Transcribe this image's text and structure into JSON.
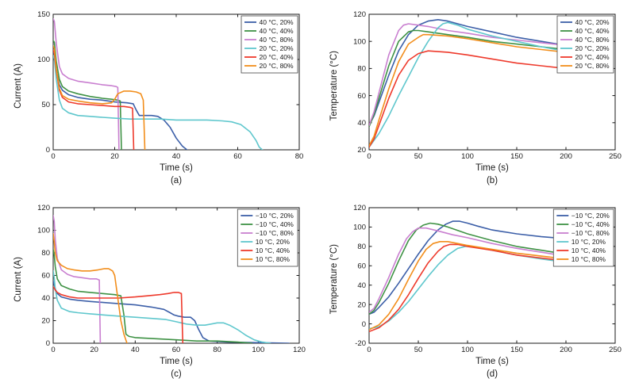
{
  "style": {
    "background": "#ffffff",
    "axis_color": "#1a1a1a",
    "text_color": "#1a1a1a",
    "legend_border": "#444444"
  },
  "palette": {
    "blue": "#3c5fa8",
    "green": "#3f9245",
    "magenta": "#c97fd0",
    "cyan": "#5fc7cd",
    "red": "#ee3a2c",
    "orange": "#f28e1c"
  },
  "chart_data": [
    {
      "type": "line",
      "caption": "(a)",
      "xlabel": "Time (s)",
      "ylabel": "Current (A)",
      "xlim": [
        0,
        80
      ],
      "ylim": [
        0,
        150
      ],
      "xticks": [
        0,
        20,
        40,
        60,
        80
      ],
      "yticks": [
        0,
        50,
        100,
        150
      ],
      "grid": false,
      "legend_position": "top-right",
      "series": [
        {
          "name": "40 °C, 20%",
          "color": "#3c5fa8",
          "x": [
            0,
            0.4,
            1,
            2,
            3,
            5,
            8,
            12,
            16,
            20,
            24,
            26,
            27,
            28,
            30,
            32,
            34,
            36,
            38,
            40,
            42,
            43.5
          ],
          "y": [
            108,
            106,
            88,
            72,
            66,
            61,
            58,
            56,
            55,
            53,
            52,
            51,
            44,
            38,
            38,
            38,
            37,
            33,
            25,
            13,
            4,
            0
          ]
        },
        {
          "name": "40 °C, 40%",
          "color": "#3f9245",
          "x": [
            0,
            0.4,
            1,
            2,
            3,
            5,
            8,
            12,
            16,
            19,
            21,
            21.8,
            22.2
          ],
          "y": [
            121,
            119,
            98,
            78,
            70,
            65,
            62,
            59,
            57,
            56,
            55,
            54,
            0
          ]
        },
        {
          "name": "40 °C, 80%",
          "color": "#c97fd0",
          "x": [
            0,
            0.4,
            1,
            2,
            3,
            5,
            8,
            12,
            16,
            19,
            20.5,
            21,
            21.4
          ],
          "y": [
            145,
            142,
            118,
            92,
            84,
            79,
            76,
            74,
            72,
            71,
            70,
            69,
            0
          ]
        },
        {
          "name": "20 °C, 20%",
          "color": "#5fc7cd",
          "x": [
            0,
            0.4,
            1,
            2,
            3,
            5,
            8,
            12,
            16,
            20,
            25,
            30,
            35,
            40,
            45,
            50,
            55,
            58,
            61,
            64,
            66,
            67,
            68
          ],
          "y": [
            104,
            100,
            78,
            55,
            46,
            41,
            38,
            37,
            36,
            35,
            34,
            34,
            34,
            33,
            33,
            33,
            32,
            31,
            28,
            20,
            10,
            3,
            0
          ]
        },
        {
          "name": "20 °C, 40%",
          "color": "#ee3a2c",
          "x": [
            0,
            0.4,
            1,
            2,
            3,
            5,
            8,
            12,
            16,
            20,
            23,
            25,
            25.8,
            26.2
          ],
          "y": [
            110,
            107,
            88,
            66,
            58,
            53,
            51,
            50,
            49,
            48,
            48,
            47,
            46,
            0
          ]
        },
        {
          "name": "20 °C, 80%",
          "color": "#f28e1c",
          "x": [
            0,
            0.4,
            1,
            2,
            3,
            5,
            8,
            12,
            16,
            19,
            20,
            21,
            23,
            25,
            27,
            28.5,
            29.3,
            29.8
          ],
          "y": [
            115,
            112,
            90,
            68,
            60,
            56,
            54,
            52,
            51,
            52,
            56,
            62,
            65,
            65,
            64,
            62,
            55,
            0
          ]
        }
      ]
    },
    {
      "type": "line",
      "caption": "(b)",
      "xlabel": "Time (s)",
      "ylabel": "Temperature (°C)",
      "xlim": [
        0,
        250
      ],
      "ylim": [
        20,
        120
      ],
      "xticks": [
        0,
        50,
        100,
        150,
        200,
        250
      ],
      "yticks": [
        20,
        40,
        60,
        80,
        100,
        120
      ],
      "grid": false,
      "legend_position": "top-right",
      "series": [
        {
          "name": "40 °C, 20%",
          "color": "#3c5fa8",
          "x": [
            0,
            5,
            10,
            20,
            30,
            40,
            50,
            60,
            70,
            80,
            100,
            125,
            150,
            175,
            200
          ],
          "y": [
            38,
            45,
            55,
            75,
            93,
            105,
            112,
            115,
            116,
            115,
            111,
            107,
            103,
            100,
            97
          ]
        },
        {
          "name": "40 °C, 40%",
          "color": "#3f9245",
          "x": [
            0,
            5,
            10,
            20,
            30,
            40,
            45,
            50,
            60,
            80,
            100,
            125,
            150,
            175,
            200
          ],
          "y": [
            37,
            46,
            58,
            82,
            100,
            107,
            108,
            108,
            107,
            105,
            103,
            100,
            98,
            96,
            94
          ]
        },
        {
          "name": "40 °C, 80%",
          "color": "#c97fd0",
          "x": [
            0,
            5,
            10,
            20,
            30,
            35,
            40,
            50,
            60,
            80,
            100,
            125,
            150,
            175,
            200
          ],
          "y": [
            38,
            48,
            62,
            90,
            108,
            112,
            113,
            112,
            111,
            108,
            106,
            103,
            101,
            99,
            97
          ]
        },
        {
          "name": "20 °C, 20%",
          "color": "#5fc7cd",
          "x": [
            0,
            10,
            20,
            30,
            40,
            50,
            60,
            70,
            75,
            80,
            90,
            100,
            125,
            150,
            175,
            190
          ],
          "y": [
            22,
            32,
            45,
            60,
            74,
            88,
            100,
            110,
            113,
            114,
            112,
            109,
            104,
            100,
            96,
            94
          ]
        },
        {
          "name": "20 °C, 40%",
          "color": "#ee3a2c",
          "x": [
            0,
            5,
            10,
            20,
            30,
            40,
            50,
            55,
            60,
            80,
            100,
            125,
            150,
            175,
            200
          ],
          "y": [
            22,
            28,
            38,
            58,
            75,
            86,
            91,
            92,
            93,
            92,
            90,
            87,
            84,
            82,
            80
          ]
        },
        {
          "name": "20 °C, 80%",
          "color": "#f28e1c",
          "x": [
            0,
            5,
            10,
            20,
            30,
            40,
            50,
            55,
            60,
            80,
            100,
            125,
            150,
            175,
            200
          ],
          "y": [
            23,
            30,
            42,
            65,
            85,
            98,
            103,
            105,
            105,
            104,
            102,
            99,
            96,
            94,
            92
          ]
        }
      ]
    },
    {
      "type": "line",
      "caption": "(c)",
      "xlabel": "Time (s)",
      "ylabel": "Current (A)",
      "xlim": [
        0,
        120
      ],
      "ylim": [
        0,
        120
      ],
      "xticks": [
        0,
        20,
        40,
        60,
        80,
        100,
        120
      ],
      "yticks": [
        0,
        20,
        40,
        60,
        80,
        100,
        120
      ],
      "grid": false,
      "legend_position": "top-right",
      "series": [
        {
          "name": "−10 °C, 20%",
          "color": "#3c5fa8",
          "x": [
            0,
            0.5,
            1,
            2,
            4,
            8,
            12,
            18,
            25,
            32,
            40,
            48,
            54,
            57,
            59,
            61,
            64,
            67,
            69,
            71,
            73,
            76,
            85,
            100,
            115
          ],
          "y": [
            55,
            52,
            48,
            44,
            41,
            39,
            38,
            37,
            36,
            35,
            34,
            32,
            30,
            27,
            25,
            24,
            23,
            23,
            20,
            12,
            5,
            2,
            1,
            0.5,
            0
          ]
        },
        {
          "name": "−10 °C, 40%",
          "color": "#3f9245",
          "x": [
            0,
            0.5,
            1,
            2,
            4,
            8,
            12,
            18,
            24,
            30,
            33,
            34.5,
            35.5,
            37,
            40,
            50,
            60,
            70,
            80,
            90,
            97
          ],
          "y": [
            83,
            78,
            68,
            57,
            51,
            48,
            46,
            45,
            44,
            43,
            42,
            25,
            8,
            6,
            5,
            4,
            3,
            2,
            2,
            1,
            0
          ]
        },
        {
          "name": "−10 °C, 80%",
          "color": "#c97fd0",
          "x": [
            0,
            0.5,
            1,
            2,
            4,
            7,
            10,
            14,
            18,
            21,
            22.5,
            23
          ],
          "y": [
            113,
            108,
            92,
            75,
            65,
            61,
            59,
            58,
            57,
            57,
            56,
            0
          ]
        },
        {
          "name": "10 °C, 20%",
          "color": "#5fc7cd",
          "x": [
            0,
            0.5,
            1,
            2,
            4,
            8,
            12,
            18,
            25,
            32,
            40,
            48,
            55,
            60,
            65,
            70,
            74,
            77,
            80,
            83,
            86,
            90,
            94,
            98,
            102,
            106
          ],
          "y": [
            64,
            58,
            48,
            38,
            31,
            28,
            27,
            26,
            25,
            24,
            23,
            22,
            21,
            19,
            17,
            16,
            16,
            17,
            18,
            18,
            16,
            12,
            7,
            3,
            1,
            0
          ]
        },
        {
          "name": "10 °C, 40%",
          "color": "#ee3a2c",
          "x": [
            0,
            0.5,
            1,
            2,
            4,
            8,
            12,
            18,
            25,
            32,
            40,
            46,
            52,
            56,
            59,
            61,
            62.5,
            63.2
          ],
          "y": [
            50,
            49,
            47,
            45,
            43,
            41,
            40,
            40,
            40,
            40,
            41,
            42,
            43,
            44,
            45,
            45,
            44,
            0
          ]
        },
        {
          "name": "10 °C, 80%",
          "color": "#f28e1c",
          "x": [
            0,
            0.5,
            1,
            2,
            4,
            7,
            10,
            14,
            18,
            22,
            25,
            27,
            29,
            30,
            31.5,
            33,
            34.5,
            36
          ],
          "y": [
            97,
            90,
            80,
            73,
            69,
            66,
            65,
            64,
            64,
            65,
            66,
            66,
            64,
            60,
            40,
            20,
            8,
            0
          ]
        }
      ]
    },
    {
      "type": "line",
      "caption": "(d)",
      "xlabel": "Time (s)",
      "ylabel": "Temperature (°C)",
      "xlim": [
        0,
        250
      ],
      "ylim": [
        -20,
        120
      ],
      "xticks": [
        0,
        50,
        100,
        150,
        200,
        250
      ],
      "yticks": [
        -20,
        0,
        20,
        40,
        60,
        80,
        100,
        120
      ],
      "grid": false,
      "legend_position": "top-right",
      "series": [
        {
          "name": "−10 °C, 20%",
          "color": "#3c5fa8",
          "x": [
            0,
            5,
            10,
            20,
            30,
            40,
            50,
            60,
            70,
            78,
            85,
            92,
            100,
            110,
            125,
            150,
            175,
            200
          ],
          "y": [
            10,
            12,
            17,
            28,
            42,
            57,
            72,
            86,
            97,
            103,
            106,
            106,
            104,
            101,
            97,
            93,
            90,
            88
          ]
        },
        {
          "name": "−10 °C, 40%",
          "color": "#3f9245",
          "x": [
            0,
            5,
            10,
            20,
            30,
            40,
            48,
            55,
            62,
            70,
            80,
            100,
            125,
            150,
            175,
            200
          ],
          "y": [
            10,
            14,
            22,
            42,
            65,
            86,
            97,
            102,
            104,
            103,
            100,
            93,
            86,
            80,
            76,
            72
          ]
        },
        {
          "name": "−10 °C, 80%",
          "color": "#c97fd0",
          "x": [
            0,
            5,
            10,
            20,
            30,
            38,
            44,
            50,
            58,
            70,
            85,
            100,
            125,
            150,
            175,
            200
          ],
          "y": [
            12,
            16,
            26,
            48,
            72,
            88,
            95,
            99,
            99,
            96,
            92,
            89,
            83,
            78,
            74,
            70
          ]
        },
        {
          "name": "10 °C, 20%",
          "color": "#5fc7cd",
          "x": [
            0,
            10,
            20,
            30,
            40,
            50,
            60,
            70,
            80,
            90,
            98,
            105,
            115,
            125,
            150,
            175,
            190
          ],
          "y": [
            -5,
            -3,
            3,
            12,
            23,
            36,
            49,
            61,
            71,
            78,
            80,
            80,
            78,
            76,
            71,
            67,
            65
          ]
        },
        {
          "name": "10 °C, 40%",
          "color": "#ee3a2c",
          "x": [
            0,
            10,
            20,
            30,
            40,
            50,
            60,
            70,
            76,
            82,
            90,
            100,
            125,
            150,
            175,
            200
          ],
          "y": [
            -8,
            -4,
            4,
            15,
            30,
            47,
            63,
            75,
            80,
            82,
            82,
            80,
            76,
            71,
            68,
            65
          ]
        },
        {
          "name": "10 °C, 80%",
          "color": "#f28e1c",
          "x": [
            0,
            10,
            20,
            30,
            40,
            50,
            58,
            65,
            72,
            80,
            90,
            100,
            125,
            150,
            175,
            200
          ],
          "y": [
            -6,
            -1,
            10,
            26,
            46,
            65,
            77,
            83,
            85,
            85,
            83,
            81,
            77,
            73,
            70,
            67
          ]
        }
      ]
    }
  ]
}
